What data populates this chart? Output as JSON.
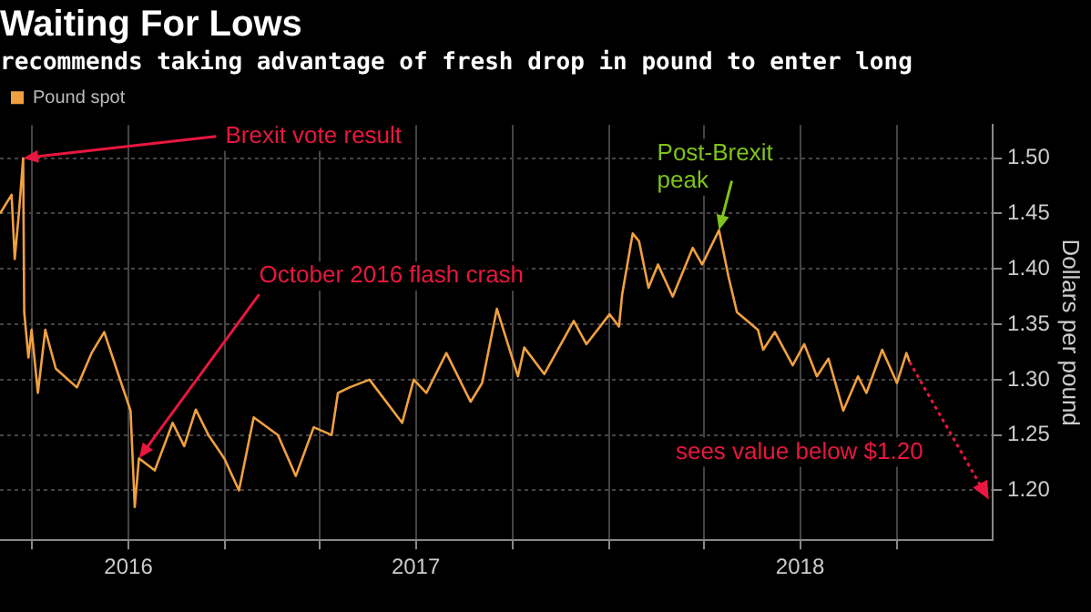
{
  "chart_data": {
    "type": "line",
    "title": "Waiting For Lows",
    "subtitle": "recommends taking advantage of fresh drop in pound to enter long",
    "ylabel": "Dollars per pound",
    "legend": "top left",
    "grid": true,
    "line_style": "solid",
    "xlim": [
      "2016-06-01",
      "2018-12-31"
    ],
    "xticks": [
      {
        "value": "2016-07-01",
        "label": null
      },
      {
        "value": "2016-10-01",
        "label": "2016"
      },
      {
        "value": "2017-01-01",
        "label": null
      },
      {
        "value": "2017-04-01",
        "label": null
      },
      {
        "value": "2017-07-01",
        "label": "2017"
      },
      {
        "value": "2017-10-01",
        "label": null
      },
      {
        "value": "2018-01-01",
        "label": null
      },
      {
        "value": "2018-04-01",
        "label": null
      },
      {
        "value": "2018-07-01",
        "label": "2018"
      },
      {
        "value": "2018-10-01",
        "label": null
      }
    ],
    "ylim": [
      1.155,
      1.53
    ],
    "yticks": [
      {
        "value": 1.2,
        "label": "1.20"
      },
      {
        "value": 1.25,
        "label": "1.25"
      },
      {
        "value": 1.3,
        "label": "1.30"
      },
      {
        "value": 1.35,
        "label": "1.35"
      },
      {
        "value": 1.4,
        "label": "1.40"
      },
      {
        "value": 1.45,
        "label": "1.45"
      },
      {
        "value": 1.5,
        "label": "1.50"
      }
    ],
    "series": [
      {
        "name": "Pound spot",
        "color": "#f0a040",
        "x": [
          "2016-06-01",
          "2016-06-12",
          "2016-06-15",
          "2016-06-19",
          "2016-06-23",
          "2016-06-24",
          "2016-06-28",
          "2016-07-01",
          "2016-07-07",
          "2016-07-14",
          "2016-07-24",
          "2016-08-13",
          "2016-08-27",
          "2016-09-08",
          "2016-09-22",
          "2016-10-03",
          "2016-10-07",
          "2016-10-11",
          "2016-10-26",
          "2016-11-12",
          "2016-11-23",
          "2016-12-04",
          "2016-12-16",
          "2016-12-31",
          "2017-01-14",
          "2017-01-28",
          "2017-02-20",
          "2017-03-09",
          "2017-03-26",
          "2017-04-12",
          "2017-04-18",
          "2017-04-29",
          "2017-05-18",
          "2017-06-18",
          "2017-06-29",
          "2017-07-11",
          "2017-07-30",
          "2017-08-22",
          "2017-09-02",
          "2017-09-16",
          "2017-10-06",
          "2017-10-12",
          "2017-10-31",
          "2017-11-28",
          "2017-12-10",
          "2018-01-01",
          "2018-01-10",
          "2018-01-13",
          "2018-01-23",
          "2018-01-29",
          "2018-02-07",
          "2018-02-16",
          "2018-03-02",
          "2018-03-21",
          "2018-03-30",
          "2018-04-15",
          "2018-04-24",
          "2018-05-02",
          "2018-05-22",
          "2018-05-27",
          "2018-06-07",
          "2018-06-24",
          "2018-07-05",
          "2018-07-17",
          "2018-07-28",
          "2018-08-11",
          "2018-08-25",
          "2018-09-02",
          "2018-09-17",
          "2018-10-01",
          "2018-10-10",
          "2018-10-13"
        ],
        "values": [
          1.45,
          1.467,
          1.409,
          1.451,
          1.5,
          1.361,
          1.32,
          1.345,
          1.288,
          1.345,
          1.31,
          1.293,
          1.324,
          1.343,
          1.303,
          1.272,
          1.185,
          1.229,
          1.218,
          1.261,
          1.24,
          1.273,
          1.25,
          1.229,
          1.2,
          1.266,
          1.25,
          1.213,
          1.257,
          1.25,
          1.288,
          1.293,
          1.3,
          1.261,
          1.3,
          1.288,
          1.324,
          1.28,
          1.297,
          1.364,
          1.303,
          1.329,
          1.305,
          1.353,
          1.332,
          1.359,
          1.348,
          1.377,
          1.432,
          1.425,
          1.383,
          1.404,
          1.375,
          1.419,
          1.404,
          1.435,
          1.393,
          1.361,
          1.345,
          1.327,
          1.343,
          1.313,
          1.332,
          1.303,
          1.319,
          1.272,
          1.303,
          1.288,
          1.327,
          1.297,
          1.324,
          1.316
        ]
      },
      {
        "type": "line",
        "color": "#e8173f",
        "line_style": "dotted",
        "x": [
          "2018-10-13",
          "2018-12-22"
        ],
        "values": [
          1.316,
          1.2
        ]
      }
    ],
    "annotations": [
      {
        "text": "Brexit vote result",
        "x": "2016-06-23",
        "y": 1.5
      },
      {
        "text": "October 2016 flash crash",
        "x": "2016-10-11",
        "y": 1.229
      },
      {
        "text": "Post-Brexit peak",
        "x": "2018-04-15",
        "y": 1.435
      },
      {
        "text": "sees value below $1.20",
        "x": "2018-12-22",
        "y": 1.2
      }
    ]
  }
}
